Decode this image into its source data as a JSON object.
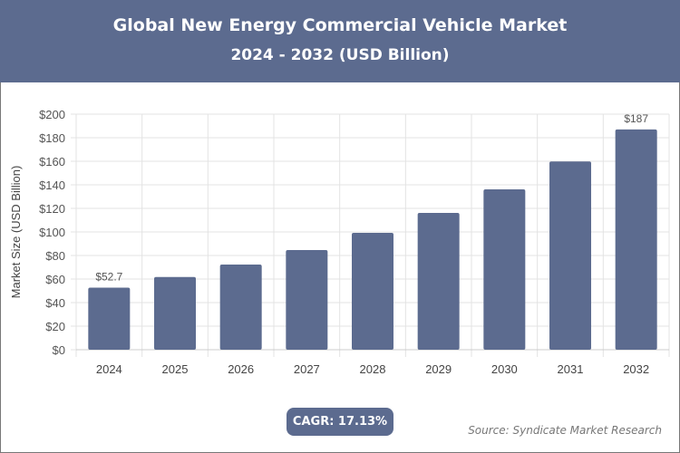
{
  "header": {
    "title": "Global New Energy Commercial Vehicle Market",
    "subtitle": "2024 - 2032 (USD Billion)"
  },
  "footer": {
    "cagr": "CAGR: 17.13%",
    "source": "Source: Syndicate Market Research"
  },
  "chart_data": {
    "type": "bar",
    "title": "Global New Energy Commercial Vehicle Market",
    "subtitle": "2024 - 2032 (USD Billion)",
    "ylabel": "Market Size (USD Billion)",
    "xlabel": "",
    "categories": [
      "2024",
      "2025",
      "2026",
      "2027",
      "2028",
      "2029",
      "2030",
      "2031",
      "2032"
    ],
    "values": [
      52.7,
      61.7,
      72.3,
      84.6,
      99.2,
      116.2,
      136.2,
      159.8,
      187
    ],
    "data_labels": {
      "0": "$52.7",
      "8": "$187"
    },
    "ylim": [
      0,
      200
    ],
    "yticks": [
      "$0",
      "$20",
      "$40",
      "$60",
      "$80",
      "$100",
      "$120",
      "$140",
      "$160",
      "$180",
      "$200"
    ],
    "grid": true,
    "bar_color": "#5c6b8f"
  }
}
